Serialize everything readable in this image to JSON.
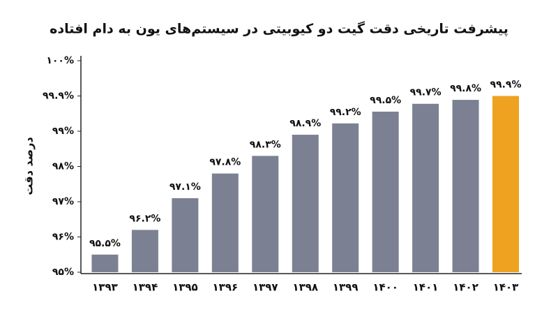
{
  "chart_data": {
    "type": "bar",
    "title": "پیشرفت تاریخی دقت گیت دو کیوبیتی در سیستم‌های یون به دام افتاده",
    "ylabel": "درصد دقت",
    "categories": [
      "۱۳۹۳",
      "۱۳۹۴",
      "۱۳۹۵",
      "۱۳۹۶",
      "۱۳۹۷",
      "۱۳۹۸",
      "۱۳۹۹",
      "۱۴۰۰",
      "۱۴۰۱",
      "۱۴۰۲",
      "۱۴۰۳"
    ],
    "values": [
      95.5,
      96.2,
      97.1,
      97.8,
      98.3,
      98.9,
      99.2,
      99.5,
      99.7,
      99.8,
      99.9
    ],
    "value_labels": [
      "۹۵.۵%",
      "۹۶.۲%",
      "۹۷.۱%",
      "۹۷.۸%",
      "۹۸.۳%",
      "۹۸.۹%",
      "۹۹.۲%",
      "۹۹.۵%",
      "۹۹.۷%",
      "۹۹.۸%",
      "۹۹.۹%"
    ],
    "colors": [
      "#7b8192",
      "#7b8192",
      "#7b8192",
      "#7b8192",
      "#7b8192",
      "#7b8192",
      "#7b8192",
      "#7b8192",
      "#7b8192",
      "#7b8192",
      "#eea220"
    ],
    "ylim": [
      95,
      100
    ],
    "yticks": [
      {
        "value": 95,
        "label": "۹۵%"
      },
      {
        "value": 96,
        "label": "۹۶%"
      },
      {
        "value": 97,
        "label": "۹۷%"
      },
      {
        "value": 98,
        "label": "۹۸%"
      },
      {
        "value": 99,
        "label": "۹۹%"
      },
      {
        "value": 99.9,
        "label": "۹۹.۹%"
      },
      {
        "value": 100,
        "label": "۱۰۰%"
      }
    ]
  }
}
